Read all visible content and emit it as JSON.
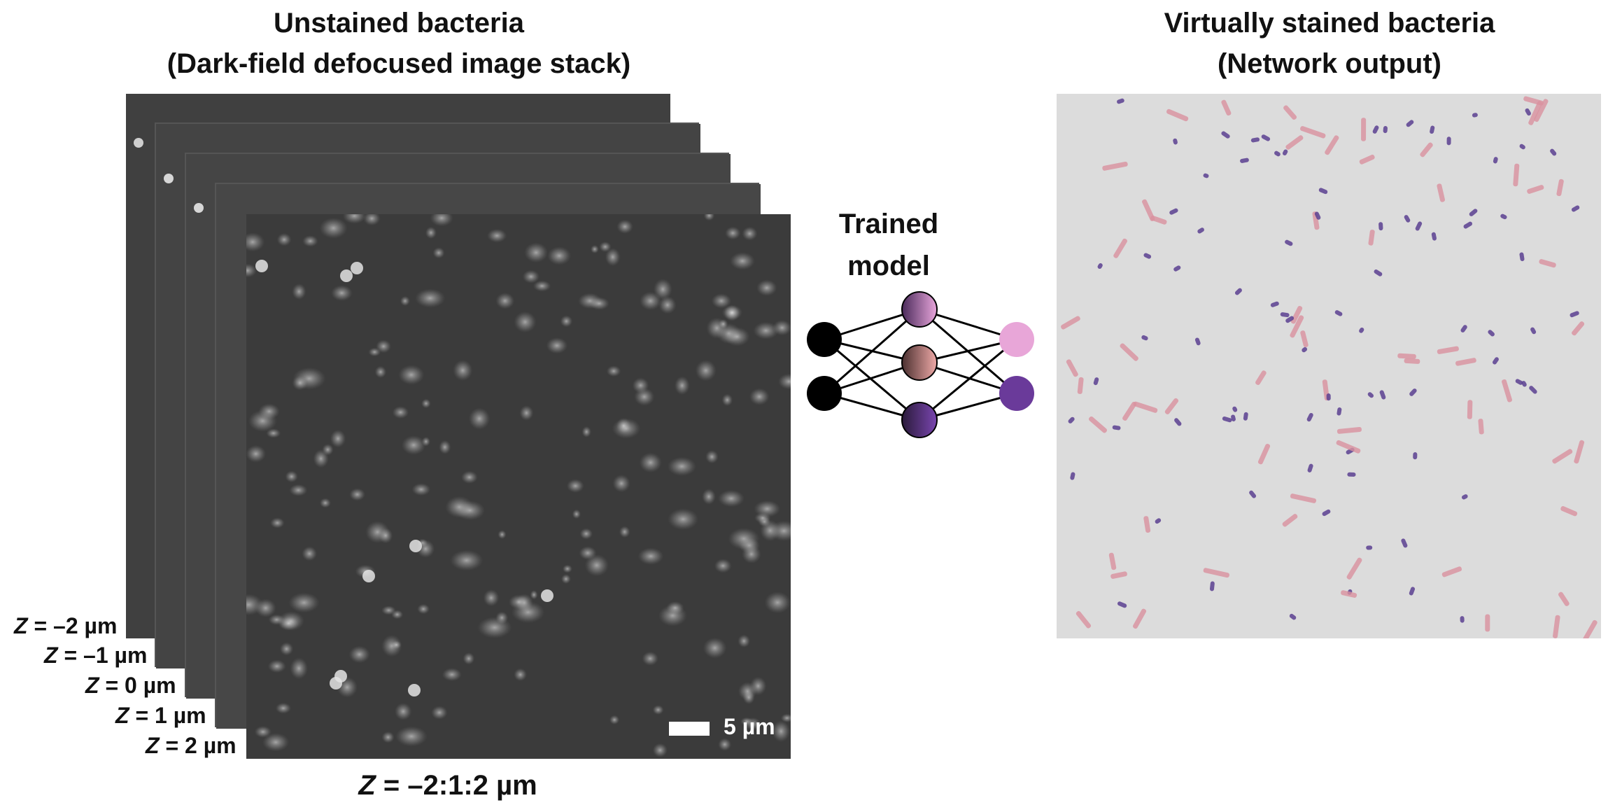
{
  "left_title": {
    "line1": "Unstained bacteria",
    "line2": "(Dark-field defocused image stack)"
  },
  "right_title": {
    "line1": "Virtually stained bacteria",
    "line2": "(Network output)"
  },
  "model_title": {
    "line1": "Trained",
    "line2": "model"
  },
  "stack_labels": [
    {
      "var": "Z",
      "text": " = –2 µm"
    },
    {
      "var": "Z",
      "text": " = –1 µm"
    },
    {
      "var": "Z",
      "text": " = 0 µm"
    },
    {
      "var": "Z",
      "text": " = 1 µm"
    },
    {
      "var": "Z",
      "text": " = 2 µm"
    }
  ],
  "z_range": {
    "var": "Z",
    "text": " = –2:1:2 µm"
  },
  "scale_bar_label": "5 µm",
  "colors": {
    "darkfield_background": "#3b3b3b",
    "stained_background": "#dcdcdc",
    "pink_stain": "#d9919f",
    "purple_stain": "#5b3f91",
    "network_input_node": "#000000",
    "network_output_pink": "#e8a6d8",
    "network_output_purple": "#6a3a9a"
  },
  "network": {
    "input_nodes": 2,
    "hidden_nodes": 3,
    "output_nodes": 2
  }
}
